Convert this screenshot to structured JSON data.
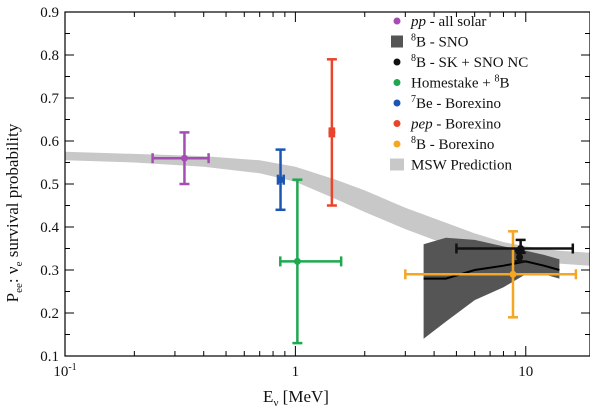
{
  "chart_data": {
    "type": "scatter",
    "title": "",
    "xlabel": {
      "main": "E",
      "sub": "ν",
      "unit": " [MeV]"
    },
    "ylabel": {
      "main": "P",
      "sub": "ee",
      "rest": ":  ν",
      "sub2": "e",
      "tail": " survival probability"
    },
    "xscale": "log",
    "xlim": [
      0.1,
      19
    ],
    "ylim": [
      0.1,
      0.9
    ],
    "grid": false,
    "legend_position": "top-right",
    "x_ticks": [
      {
        "value": 0.1,
        "base": "10",
        "sup": "-1"
      },
      {
        "value": 1,
        "base": "1",
        "sup": ""
      },
      {
        "value": 10,
        "base": "10",
        "sup": ""
      }
    ],
    "y_ticks": [
      {
        "value": 0.1,
        "label": "0.1"
      },
      {
        "value": 0.2,
        "label": "0.2"
      },
      {
        "value": 0.3,
        "label": "0.3"
      },
      {
        "value": 0.4,
        "label": "0.4"
      },
      {
        "value": 0.5,
        "label": "0.5"
      },
      {
        "value": 0.6,
        "label": "0.6"
      },
      {
        "value": 0.7,
        "label": "0.7"
      },
      {
        "value": 0.8,
        "label": "0.8"
      },
      {
        "value": 0.9,
        "label": "0.9"
      }
    ],
    "legend": [
      {
        "pre": "",
        "sup": "",
        "italic": "pp",
        "text": " - all solar",
        "color": "#a64db5",
        "marker": "dot"
      },
      {
        "pre": "",
        "sup": "8",
        "italic": "",
        "text": "B - SNO",
        "color": "#555555",
        "marker": "square"
      },
      {
        "pre": "",
        "sup": "8",
        "italic": "",
        "text": "B - SK + SNO NC",
        "color": "#111111",
        "marker": "dot"
      },
      {
        "pre": "Homestake + ",
        "sup": "8",
        "italic": "",
        "text": "B",
        "color": "#1fa84f",
        "marker": "dot"
      },
      {
        "pre": "",
        "sup": "7",
        "italic": "",
        "text": "Be - Borexino",
        "color": "#1c56b5",
        "marker": "dot"
      },
      {
        "pre": "",
        "sup": "",
        "italic": "pep",
        "text": " - Borexino",
        "color": "#e8452c",
        "marker": "dot"
      },
      {
        "pre": "",
        "sup": "8",
        "italic": "",
        "text": "B - Borexino",
        "color": "#f5a623",
        "marker": "dot"
      },
      {
        "pre": "",
        "sup": "",
        "italic": "",
        "text": "MSW Prediction",
        "color": "#c8c8c8",
        "marker": "band"
      }
    ],
    "series": [
      {
        "name": "pp - all solar",
        "color": "#a64db5",
        "points": [
          {
            "x": 0.33,
            "y": 0.56,
            "xerr": [
              0.24,
              0.42
            ],
            "yerr": [
              0.5,
              0.62
            ]
          }
        ]
      },
      {
        "name": "Homestake + 8B",
        "color": "#1fa84f",
        "points": [
          {
            "x": 1.02,
            "y": 0.32,
            "xerr": [
              0.86,
              1.58
            ],
            "yerr": [
              0.13,
              0.51
            ]
          }
        ]
      },
      {
        "name": "7Be - Borexino",
        "color": "#1c56b5",
        "points": [
          {
            "x": 0.862,
            "y": 0.51,
            "xerr": [
              0.84,
              0.89
            ],
            "yerr": [
              0.44,
              0.58
            ]
          }
        ]
      },
      {
        "name": "pep - Borexino",
        "color": "#e8452c",
        "points": [
          {
            "x": 1.44,
            "y": 0.62,
            "xerr": [
              1.41,
              1.47
            ],
            "yerr": [
              0.45,
              0.79
            ]
          }
        ]
      },
      {
        "name": "8B - Borexino",
        "color": "#f5a623",
        "points": [
          {
            "x": 8.8,
            "y": 0.29,
            "xerr": [
              3.0,
              16.5
            ],
            "yerr": [
              0.19,
              0.39
            ]
          }
        ]
      },
      {
        "name": "8B - SK + SNO NC",
        "color": "#111111",
        "points": [
          {
            "x": 9.5,
            "y": 0.35,
            "xerr": [
              5.0,
              16.0
            ],
            "yerr": [
              0.34,
              0.37
            ]
          },
          {
            "x": 9.4,
            "y": 0.33,
            "xerr": [
              9.3,
              9.5
            ],
            "yerr": [
              0.32,
              0.345
            ]
          }
        ]
      }
    ],
    "sno_band": {
      "name": "8B - SNO",
      "color": "#555555",
      "x": [
        3.6,
        4.5,
        6,
        8,
        10,
        12,
        14
      ],
      "upper": [
        0.36,
        0.375,
        0.37,
        0.355,
        0.345,
        0.335,
        0.325
      ],
      "center": [
        0.28,
        0.28,
        0.3,
        0.31,
        0.32,
        0.31,
        0.3
      ],
      "lower": [
        0.14,
        0.18,
        0.23,
        0.26,
        0.29,
        0.29,
        0.28
      ]
    },
    "msw_band": {
      "name": "MSW Prediction",
      "color": "#c8c8c8",
      "x": [
        0.1,
        0.2,
        0.4,
        0.7,
        1.0,
        1.5,
        2.0,
        3.0,
        4.0,
        6.0,
        8.0,
        10.0,
        14.0,
        19.0
      ],
      "upper": [
        0.575,
        0.57,
        0.565,
        0.555,
        0.54,
        0.51,
        0.485,
        0.445,
        0.42,
        0.385,
        0.365,
        0.355,
        0.345,
        0.34
      ],
      "lower": [
        0.555,
        0.55,
        0.54,
        0.525,
        0.505,
        0.465,
        0.435,
        0.395,
        0.37,
        0.345,
        0.33,
        0.32,
        0.315,
        0.31
      ]
    }
  }
}
